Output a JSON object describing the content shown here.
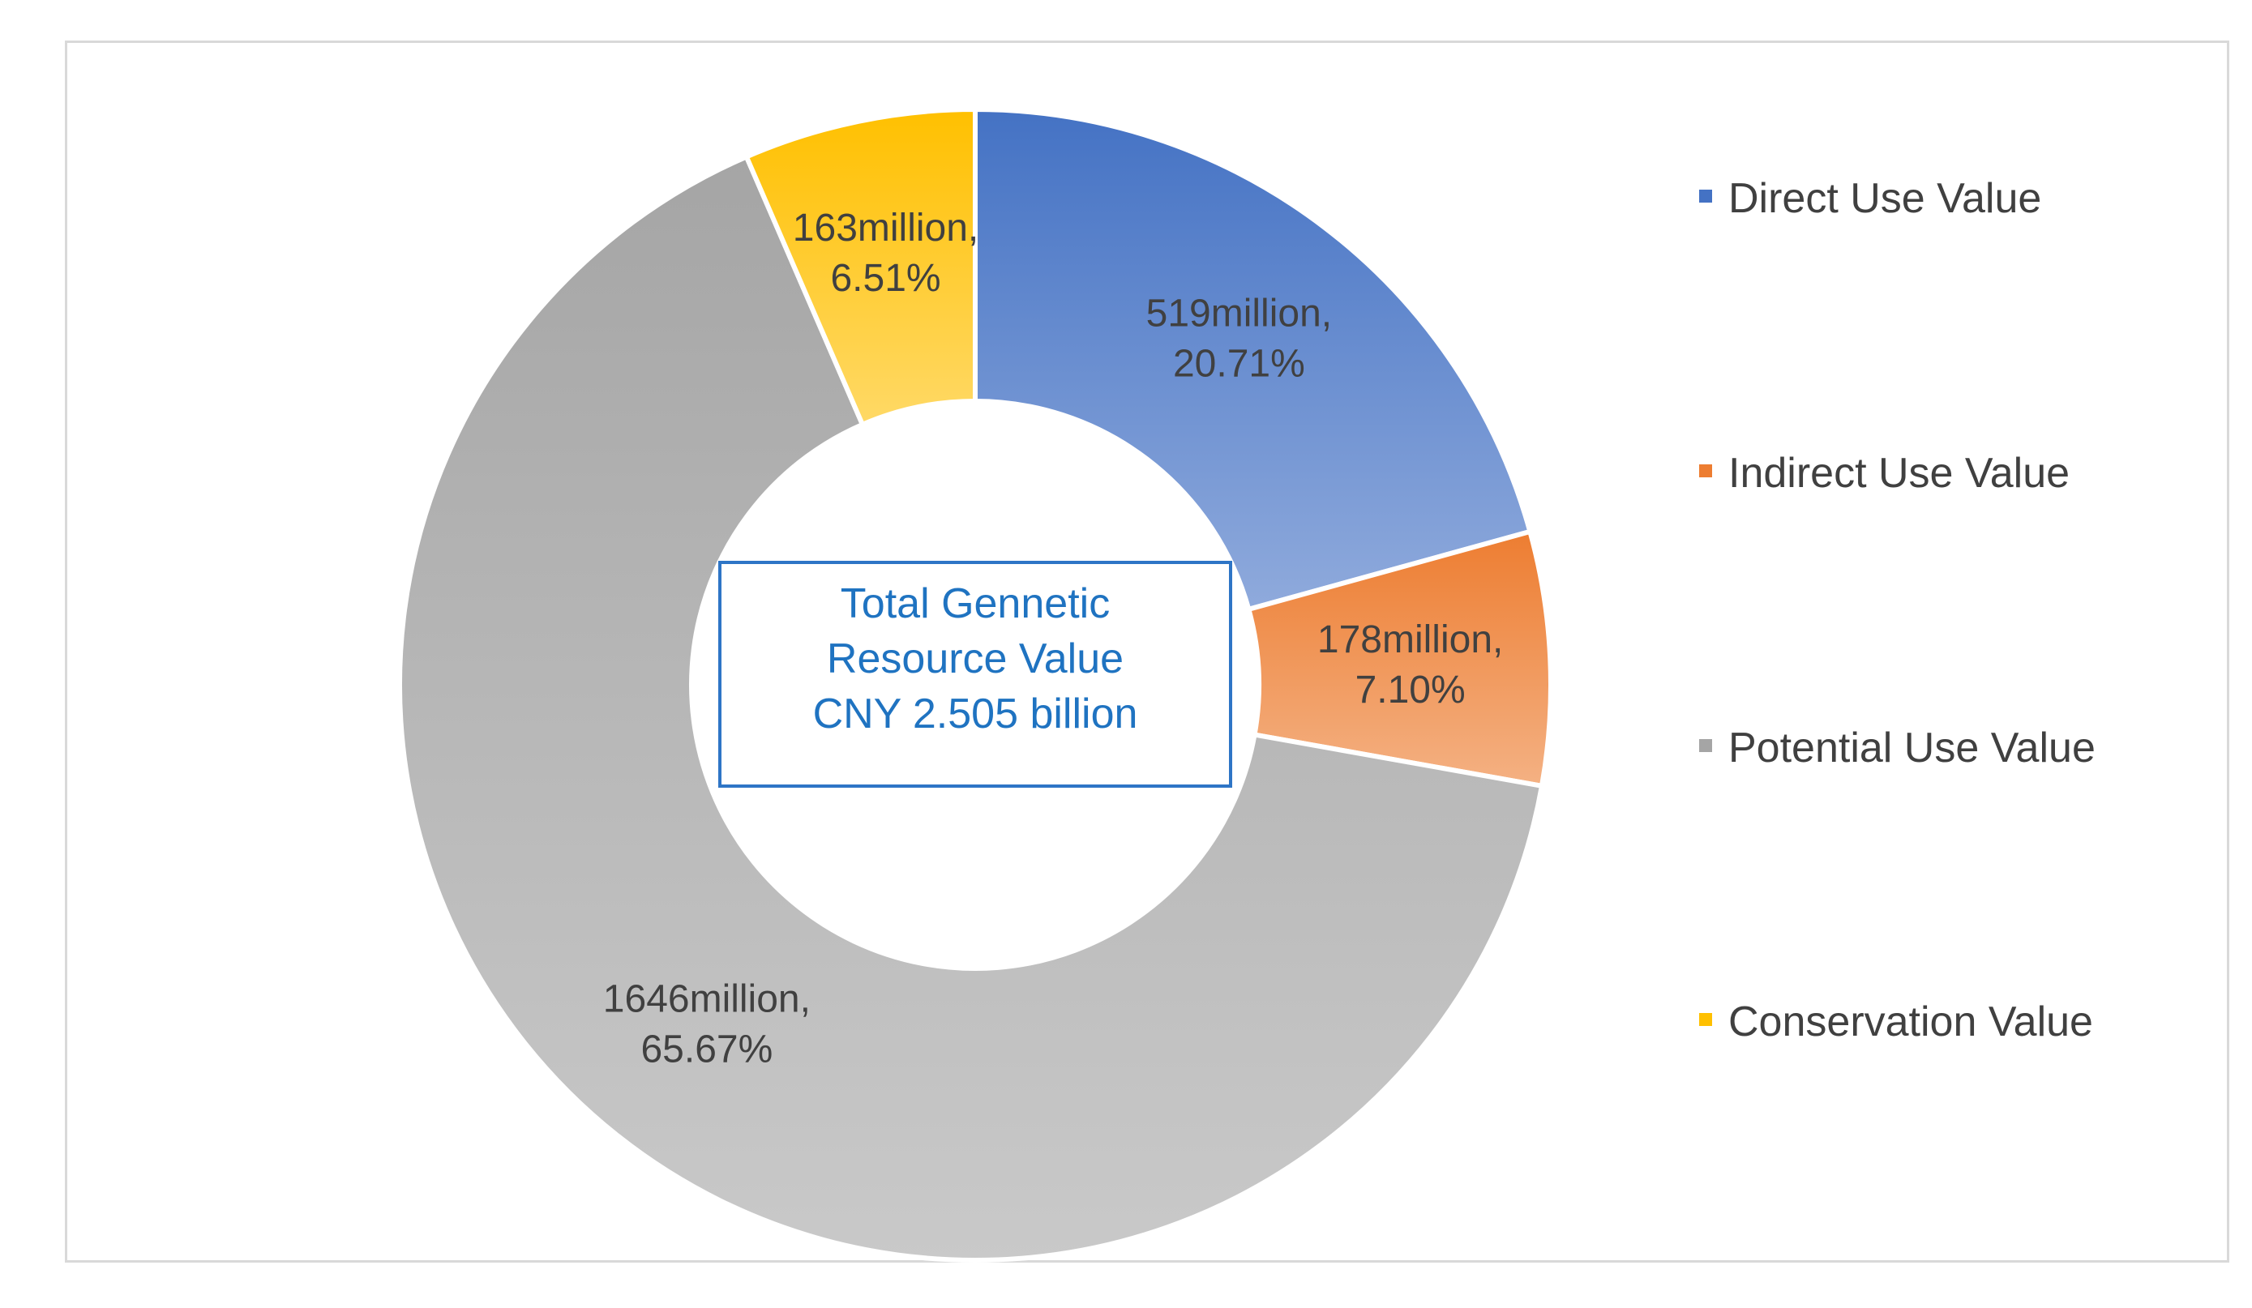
{
  "chart_data": {
    "type": "pie",
    "variant": "donut",
    "title": "",
    "center_label": [
      "Total Gennetic",
      "Resource Value",
      "CNY 2.505 billion"
    ],
    "categories": [
      "Direct Use Value",
      "Indirect Use Value",
      "Potential Use Value",
      "Conservation Value"
    ],
    "values": [
      519,
      178,
      1646,
      163
    ],
    "percentages": [
      20.71,
      7.1,
      65.67,
      6.51
    ],
    "data_labels": [
      [
        "519million,",
        "20.71%"
      ],
      [
        "178million,",
        "7.10%"
      ],
      [
        "1646million,",
        "65.67%"
      ],
      [
        "163million,",
        "6.51%"
      ]
    ],
    "colors": [
      "#4472c4",
      "#ed7d31",
      "#a5a5a5",
      "#ffc000"
    ],
    "colors_light": [
      "#8faadc",
      "#f4b183",
      "#c9c9c9",
      "#ffd966"
    ],
    "legend_position": "right",
    "units": "million CNY"
  }
}
